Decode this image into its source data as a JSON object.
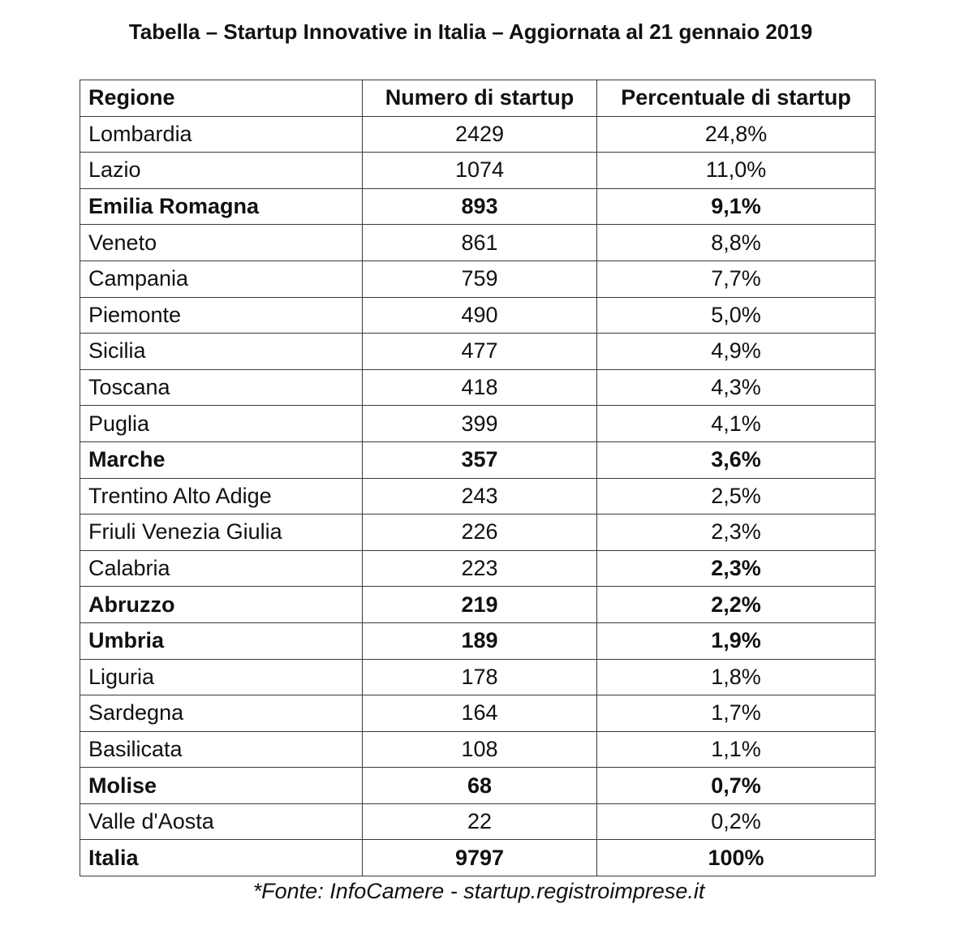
{
  "title": "Tabella – Startup Innovative in Italia – Aggiornata al 21 gennaio 2019",
  "table": {
    "headers": [
      "Regione",
      "Numero di startup",
      "Percentuale di startup"
    ],
    "rows": [
      {
        "region": "Lombardia",
        "count": "2429",
        "percent": "24,8%",
        "bold_region": false,
        "bold_count": false,
        "bold_percent": false
      },
      {
        "region": "Lazio",
        "count": "1074",
        "percent": "11,0%",
        "bold_region": false,
        "bold_count": false,
        "bold_percent": false
      },
      {
        "region": "Emilia Romagna",
        "count": "893",
        "percent": "9,1%",
        "bold_region": true,
        "bold_count": true,
        "bold_percent": true
      },
      {
        "region": "Veneto",
        "count": "861",
        "percent": "8,8%",
        "bold_region": false,
        "bold_count": false,
        "bold_percent": false
      },
      {
        "region": "Campania",
        "count": "759",
        "percent": "7,7%",
        "bold_region": false,
        "bold_count": false,
        "bold_percent": false
      },
      {
        "region": "Piemonte",
        "count": "490",
        "percent": "5,0%",
        "bold_region": false,
        "bold_count": false,
        "bold_percent": false
      },
      {
        "region": "Sicilia",
        "count": "477",
        "percent": "4,9%",
        "bold_region": false,
        "bold_count": false,
        "bold_percent": false
      },
      {
        "region": "Toscana",
        "count": "418",
        "percent": "4,3%",
        "bold_region": false,
        "bold_count": false,
        "bold_percent": false
      },
      {
        "region": "Puglia",
        "count": "399",
        "percent": "4,1%",
        "bold_region": false,
        "bold_count": false,
        "bold_percent": false
      },
      {
        "region": "Marche",
        "count": "357",
        "percent": "3,6%",
        "bold_region": true,
        "bold_count": true,
        "bold_percent": true
      },
      {
        "region": "Trentino Alto Adige",
        "count": "243",
        "percent": "2,5%",
        "bold_region": false,
        "bold_count": false,
        "bold_percent": false
      },
      {
        "region": "Friuli Venezia Giulia",
        "count": "226",
        "percent": "2,3%",
        "bold_region": false,
        "bold_count": false,
        "bold_percent": false
      },
      {
        "region": "Calabria",
        "count": "223",
        "percent": "2,3%",
        "bold_region": false,
        "bold_count": false,
        "bold_percent": true
      },
      {
        "region": "Abruzzo",
        "count": "219",
        "percent": "2,2%",
        "bold_region": true,
        "bold_count": true,
        "bold_percent": true
      },
      {
        "region": "Umbria",
        "count": "189",
        "percent": "1,9%",
        "bold_region": true,
        "bold_count": true,
        "bold_percent": true
      },
      {
        "region": "Liguria",
        "count": "178",
        "percent": "1,8%",
        "bold_region": false,
        "bold_count": false,
        "bold_percent": false
      },
      {
        "region": "Sardegna",
        "count": "164",
        "percent": "1,7%",
        "bold_region": false,
        "bold_count": false,
        "bold_percent": false
      },
      {
        "region": "Basilicata",
        "count": "108",
        "percent": "1,1%",
        "bold_region": false,
        "bold_count": false,
        "bold_percent": false
      },
      {
        "region": "Molise",
        "count": "68",
        "percent": "0,7%",
        "bold_region": true,
        "bold_count": true,
        "bold_percent": true
      },
      {
        "region": "Valle d'Aosta",
        "count": "22",
        "percent": "0,2%",
        "bold_region": false,
        "bold_count": false,
        "bold_percent": false
      },
      {
        "region": "Italia",
        "count": "9797",
        "percent": "100%",
        "bold_region": true,
        "bold_count": true,
        "bold_percent": true
      }
    ]
  },
  "source": "*Fonte: InfoCamere - startup.registroimprese.it",
  "colors": {
    "text": "#111111",
    "border": "#3a3a3a",
    "background": "#ffffff"
  }
}
